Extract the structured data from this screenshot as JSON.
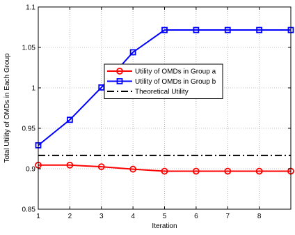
{
  "chart_data": {
    "type": "line",
    "xlabel": "Iteration",
    "ylabel": "Total Utility of OMDs in Each Group",
    "xlim": [
      1,
      9
    ],
    "ylim": [
      0.85,
      1.1
    ],
    "xticks": [
      1,
      2,
      3,
      4,
      5,
      6,
      7,
      8
    ],
    "yticks": [
      0.85,
      0.9,
      0.95,
      1,
      1.05,
      1.1
    ],
    "xtick_labels": [
      "1",
      "2",
      "3",
      "4",
      "5",
      "6",
      "7",
      "8"
    ],
    "ytick_labels": [
      "0.85",
      "0.9",
      "0.95",
      "1",
      "1.05",
      "1.1"
    ],
    "grid": true,
    "legend_position": "center-right",
    "series": [
      {
        "name": "Utility of OMDs in Group a",
        "color": "#ff0000",
        "marker": "circle",
        "line_style": "solid",
        "x": [
          1,
          2,
          3,
          4,
          5,
          6,
          7,
          8,
          9
        ],
        "values": [
          0.9045,
          0.9045,
          0.9025,
          0.8995,
          0.897,
          0.897,
          0.897,
          0.897,
          0.897
        ]
      },
      {
        "name": "Utility of OMDs in Group b",
        "color": "#0000ff",
        "marker": "square",
        "line_style": "solid",
        "x": [
          1,
          2,
          3,
          4,
          5,
          6,
          7,
          8,
          9
        ],
        "values": [
          0.929,
          0.9605,
          1.0005,
          1.044,
          1.0715,
          1.0715,
          1.0715,
          1.0715,
          1.0715
        ]
      },
      {
        "name": "Theoretical Utility",
        "color": "#000000",
        "marker": "none",
        "line_style": "dashdot",
        "x": [
          1,
          9
        ],
        "values": [
          0.9165,
          0.9165
        ]
      }
    ]
  }
}
